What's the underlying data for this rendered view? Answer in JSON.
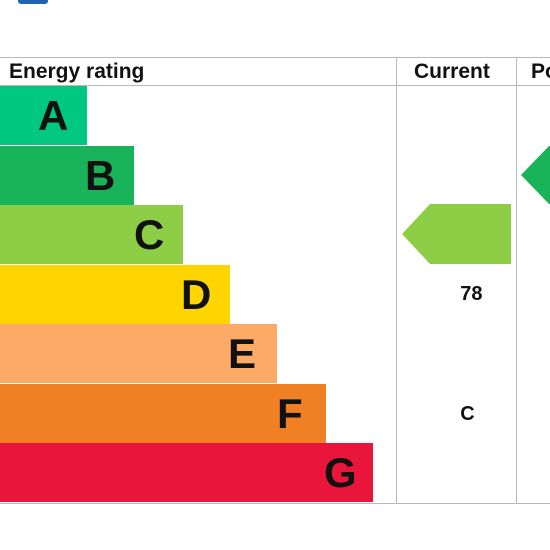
{
  "header": {
    "rating_label": "Energy rating",
    "current_label": "Current",
    "potential_label": "Po"
  },
  "colors": {
    "A": "#00c781",
    "B": "#19b459",
    "C": "#8dce46",
    "D": "#ffd500",
    "E": "#fcaa65",
    "F": "#ef8023",
    "G": "#e9153b"
  },
  "chart_data": {
    "type": "bar",
    "categories": [
      "A",
      "B",
      "C",
      "D",
      "E",
      "F",
      "G"
    ],
    "bands": [
      {
        "letter": "A",
        "color": "#00c781"
      },
      {
        "letter": "B",
        "color": "#19b459"
      },
      {
        "letter": "C",
        "color": "#8dce46"
      },
      {
        "letter": "D",
        "color": "#ffd500"
      },
      {
        "letter": "E",
        "color": "#fcaa65"
      },
      {
        "letter": "F",
        "color": "#ef8023"
      },
      {
        "letter": "G",
        "color": "#e9153b"
      }
    ],
    "current": {
      "score": "78",
      "band": "C",
      "color": "#8dce46"
    },
    "potential": {
      "band": "B",
      "color": "#19b459"
    }
  }
}
